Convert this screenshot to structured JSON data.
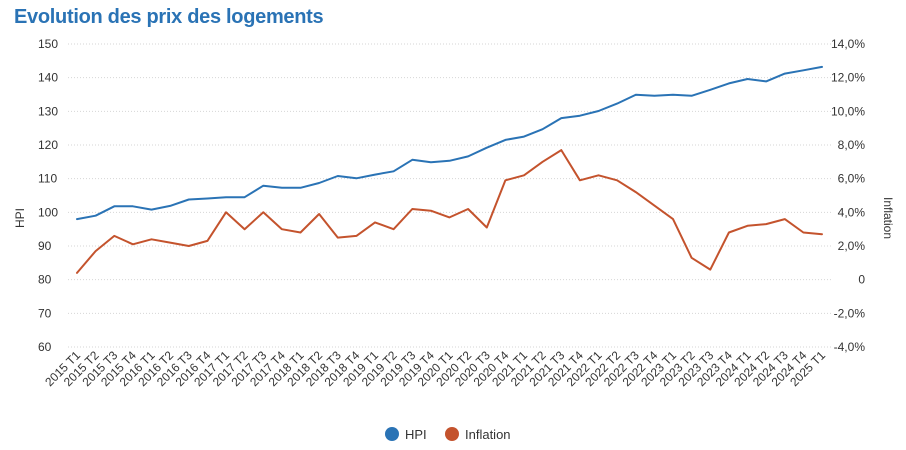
{
  "chart_data": {
    "type": "line",
    "title": "Evolution des prix des logements",
    "ylabel": "HPI",
    "y2label": "Inflation",
    "ylim": [
      60,
      150
    ],
    "y2lim": [
      -4,
      14
    ],
    "yticks": [
      "60",
      "70",
      "80",
      "90",
      "100",
      "110",
      "120",
      "130",
      "140",
      "150"
    ],
    "y2ticks": [
      "-4,0%",
      "-2,0%",
      "0",
      "2,0%",
      "4,0%",
      "6,0%",
      "8,0%",
      "10,0%",
      "12,0%",
      "14,0%"
    ],
    "grid": true,
    "legend_position": "bottom-center",
    "categories": [
      "2015 T1",
      "2015 T2",
      "2015 T3",
      "2015 T4",
      "2016 T1",
      "2016 T2",
      "2016 T3",
      "2016 T4",
      "2017 T1",
      "2017 T2",
      "2017 T3",
      "2017 T4",
      "2018 T1",
      "2018 T2",
      "2018 T3",
      "2018 T4",
      "2019 T1",
      "2019 T2",
      "2019 T3",
      "2019 T4",
      "2020 T1",
      "2020 T2",
      "2020 T3",
      "2020 T4",
      "2021 T1",
      "2021 T2",
      "2021 T3",
      "2021 T4",
      "2022 T1",
      "2022 T2",
      "2022 T3",
      "2022 T4",
      "2023 T1",
      "2023 T2",
      "2023 T3",
      "2023 T4",
      "2024 T1",
      "2024 T2",
      "2024 T3",
      "2024 T4",
      "2025 T1"
    ],
    "series": [
      {
        "name": "HPI",
        "axis": "left",
        "color": "#2a73b5",
        "values": [
          98.0,
          99.0,
          101.8,
          101.8,
          100.8,
          101.9,
          103.8,
          104.1,
          104.5,
          104.5,
          107.9,
          107.3,
          107.3,
          108.7,
          110.8,
          110.1,
          111.2,
          112.2,
          115.6,
          114.9,
          115.3,
          116.6,
          119.2,
          121.5,
          122.5,
          124.7,
          128.0,
          128.7,
          130.1,
          132.3,
          134.9,
          134.6,
          134.9,
          134.6,
          136.4,
          138.3,
          139.6,
          138.9,
          141.2,
          142.2,
          143.2
        ]
      },
      {
        "name": "Inflation",
        "axis": "right",
        "color": "#c4532d",
        "values": [
          0.4,
          1.7,
          2.6,
          2.1,
          2.4,
          2.2,
          2.0,
          2.3,
          4.0,
          3.0,
          4.0,
          3.0,
          2.8,
          3.9,
          2.5,
          2.6,
          3.4,
          3.0,
          4.2,
          4.1,
          3.7,
          4.2,
          3.1,
          5.9,
          6.2,
          7.0,
          7.7,
          5.9,
          6.2,
          5.9,
          5.2,
          4.4,
          3.6,
          1.3,
          0.6,
          2.8,
          3.2,
          3.3,
          3.6,
          2.8,
          2.7
        ]
      }
    ]
  }
}
